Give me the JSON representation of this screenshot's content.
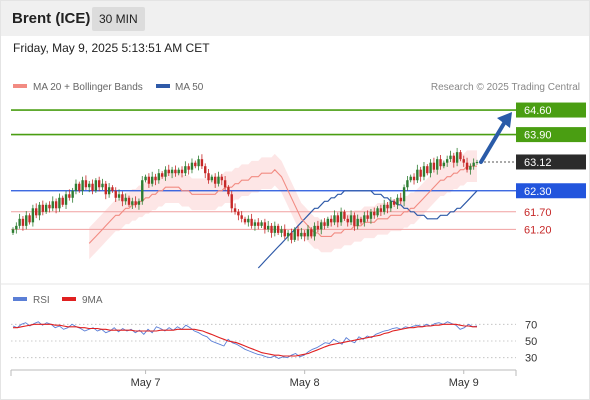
{
  "header": {
    "instrument": "Brent (ICE)",
    "timeframe": "30 MIN"
  },
  "timestamp": "Friday, May 9, 2025 5:13:51 AM CET",
  "colors": {
    "bull": "#2e7d32",
    "bear": "#c62828",
    "ma20": "#f28b82",
    "bollinger_fill": "#fde2e2",
    "ma50": "#2f5aa8",
    "green_level": "#4a9e12",
    "blue_level": "#2255dd",
    "red_level": "#f0a0a0",
    "current": "#2b2b2b",
    "arrow": "#2a5ba8",
    "rsi": "#5b7fd6",
    "rsi_ma": "#e02020"
  },
  "chart_data": [
    {
      "type": "candlestick",
      "legend": [
        {
          "name": "MA 20 + Bollinger Bands",
          "color": "#f28b82"
        },
        {
          "name": "MA 50",
          "color": "#2f5aa8"
        }
      ],
      "watermark": "Research © 2025 Trading Central",
      "x_ticks": [
        {
          "label": "May 7",
          "index": 40
        },
        {
          "label": "May 8",
          "index": 88
        },
        {
          "label": "May 9",
          "index": 136
        }
      ],
      "ylim": [
        59.7,
        65.0
      ],
      "close": [
        61.2,
        61.3,
        61.5,
        61.3,
        61.6,
        61.4,
        61.8,
        61.6,
        61.9,
        61.7,
        61.9,
        61.8,
        62.0,
        61.8,
        62.1,
        61.9,
        62.2,
        62.1,
        62.3,
        62.5,
        62.3,
        62.6,
        62.4,
        62.5,
        62.3,
        62.6,
        62.4,
        62.5,
        62.2,
        62.4,
        62.3,
        62.1,
        62.2,
        62.0,
        62.1,
        61.9,
        62.0,
        61.9,
        62.0,
        62.6,
        62.7,
        62.5,
        62.7,
        62.6,
        62.8,
        62.7,
        62.9,
        62.8,
        62.9,
        62.8,
        62.9,
        62.8,
        63.0,
        62.9,
        63.1,
        63.0,
        63.2,
        63.0,
        62.8,
        62.6,
        62.7,
        62.5,
        62.7,
        62.6,
        62.4,
        62.2,
        61.8,
        61.7,
        61.6,
        61.5,
        61.4,
        61.5,
        61.3,
        61.4,
        61.3,
        61.4,
        61.2,
        61.3,
        61.1,
        61.3,
        61.1,
        61.2,
        61.0,
        61.1,
        60.9,
        61.2,
        61.0,
        61.1,
        61.0,
        61.2,
        61.0,
        61.3,
        61.2,
        61.4,
        61.3,
        61.5,
        61.4,
        61.6,
        61.4,
        61.7,
        61.5,
        61.4,
        61.6,
        61.3,
        61.5,
        61.4,
        61.6,
        61.5,
        61.7,
        61.6,
        61.8,
        61.7,
        61.9,
        61.8,
        62.0,
        61.9,
        62.1,
        62.0,
        62.4,
        62.6,
        62.7,
        62.6,
        62.9,
        62.7,
        63.0,
        62.8,
        63.1,
        62.9,
        63.2,
        63.0,
        63.1,
        63.2,
        63.3,
        63.1,
        63.4,
        63.2,
        63.1,
        62.9,
        63.0,
        63.1,
        63.12
      ],
      "ma20": [
        60.8,
        60.9,
        61.0,
        61.1,
        61.2,
        61.3,
        61.4,
        61.5,
        61.6,
        61.6,
        61.7,
        61.8,
        61.8,
        61.9,
        61.9,
        62.0,
        62.0,
        62.1,
        62.1,
        62.2,
        62.2,
        62.3,
        62.3,
        62.4,
        62.4,
        62.4,
        62.4,
        62.4,
        62.3,
        62.3,
        62.3,
        62.2,
        62.2,
        62.2,
        62.2,
        62.2,
        62.2,
        62.2,
        62.2,
        62.3,
        62.3,
        62.4,
        62.4,
        62.4,
        62.5,
        62.5,
        62.6,
        62.6,
        62.6,
        62.7,
        62.7,
        62.7,
        62.8,
        62.8,
        62.8,
        62.8,
        62.9,
        62.8,
        62.7,
        62.5,
        62.3,
        62.1,
        61.9,
        61.7,
        61.5,
        61.4,
        61.3,
        61.2,
        61.1,
        61.1,
        61.0,
        61.0,
        61.0,
        61.0,
        61.1,
        61.1,
        61.1,
        61.2,
        61.2,
        61.2,
        61.3,
        61.3,
        61.3,
        61.4,
        61.4,
        61.4,
        61.4,
        61.5,
        61.5,
        61.5,
        61.5,
        61.6,
        61.6,
        61.6,
        61.6,
        61.7,
        61.7,
        61.8,
        61.8,
        61.9,
        62.0,
        62.1,
        62.2,
        62.3,
        62.4,
        62.5,
        62.6,
        62.6,
        62.7,
        62.7,
        62.8,
        62.8,
        62.9,
        62.9,
        63.0,
        63.0,
        63.0,
        63.0
      ],
      "ma50": [
        60.1,
        60.2,
        60.3,
        60.4,
        60.5,
        60.6,
        60.7,
        60.8,
        60.9,
        61.0,
        61.1,
        61.2,
        61.3,
        61.4,
        61.5,
        61.6,
        61.7,
        61.8,
        61.8,
        61.9,
        62.0,
        62.0,
        62.1,
        62.1,
        62.2,
        62.2,
        62.3,
        62.3,
        62.3,
        62.3,
        62.3,
        62.3,
        62.3,
        62.3,
        62.3,
        62.2,
        62.2,
        62.2,
        62.1,
        62.1,
        62.0,
        62.0,
        61.9,
        61.9,
        61.8,
        61.8,
        61.7,
        61.7,
        61.6,
        61.6,
        61.6,
        61.5,
        61.5,
        61.5,
        61.5,
        61.6,
        61.6,
        61.6,
        61.7,
        61.7,
        61.8,
        61.8,
        61.9,
        62.0,
        62.1,
        62.2,
        62.3
      ],
      "bb_width": 0.45,
      "levels": [
        {
          "label": "64.60",
          "value": 64.6,
          "kind": "resistance"
        },
        {
          "label": "63.90",
          "value": 63.9,
          "kind": "resistance"
        },
        {
          "label": "63.12",
          "value": 63.12,
          "kind": "current"
        },
        {
          "label": "62.30",
          "value": 62.3,
          "kind": "pivot"
        },
        {
          "label": "61.70",
          "value": 61.7,
          "kind": "support"
        },
        {
          "label": "61.20",
          "value": 61.2,
          "kind": "support"
        }
      ],
      "forecast_target": 64.6
    },
    {
      "type": "line",
      "legend": [
        {
          "name": "RSI",
          "color": "#5b7fd6"
        },
        {
          "name": "9MA",
          "color": "#e02020"
        }
      ],
      "ylim": [
        20,
        80
      ],
      "levels": [
        {
          "label": "70",
          "value": 70
        },
        {
          "label": "50",
          "value": 50
        },
        {
          "label": "30",
          "value": 30
        }
      ],
      "rsi": [
        68,
        66,
        70,
        72,
        68,
        71,
        73,
        69,
        72,
        70,
        66,
        68,
        64,
        66,
        70,
        67,
        65,
        62,
        64,
        66,
        62,
        64,
        60,
        62,
        66,
        61,
        65,
        62,
        64,
        60,
        63,
        58,
        64,
        60,
        67,
        65,
        62,
        66,
        63,
        67,
        64,
        69,
        66,
        62,
        60,
        57,
        55,
        50,
        48,
        46,
        44,
        52,
        48,
        46,
        43,
        40,
        38,
        36,
        34,
        33,
        31,
        30,
        32,
        29,
        31,
        30,
        33,
        35,
        31,
        33,
        37,
        40,
        42,
        45,
        48,
        47,
        52,
        49,
        46,
        54,
        50,
        48,
        55,
        52,
        56,
        54,
        58,
        60,
        62,
        63,
        65,
        66,
        64,
        67,
        66,
        68,
        69,
        67,
        70,
        68,
        71,
        72,
        70,
        73,
        71,
        69,
        64,
        66,
        70,
        67,
        68
      ],
      "rsi_ma": [
        66,
        66,
        67,
        68,
        69,
        70,
        70,
        70,
        70,
        70,
        69,
        69,
        68,
        67,
        67,
        67,
        66,
        66,
        65,
        65,
        65,
        64,
        64,
        63,
        63,
        63,
        63,
        63,
        63,
        62,
        62,
        62,
        62,
        62,
        62,
        63,
        63,
        63,
        63,
        64,
        64,
        64,
        64,
        64,
        63,
        62,
        60,
        58,
        56,
        54,
        52,
        50,
        49,
        48,
        46,
        44,
        42,
        40,
        38,
        36,
        35,
        34,
        33,
        33,
        32,
        32,
        32,
        32,
        33,
        34,
        35,
        37,
        39,
        41,
        43,
        45,
        46,
        47,
        48,
        49,
        50,
        51,
        52,
        53,
        54,
        55,
        56,
        57,
        59,
        60,
        62,
        63,
        64,
        65,
        66,
        66,
        67,
        67,
        68,
        68,
        69,
        69,
        70,
        70,
        70,
        70,
        69,
        68,
        68,
        67,
        67
      ]
    }
  ]
}
